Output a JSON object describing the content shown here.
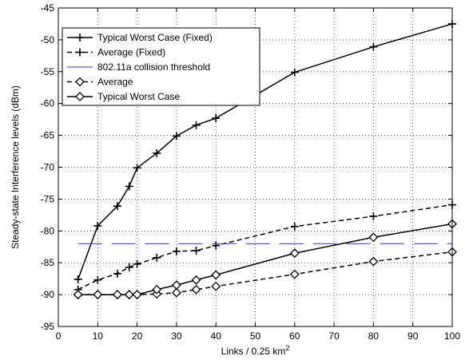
{
  "chart_data": {
    "type": "line",
    "title": "",
    "xlabel": "Links / 0.25 km",
    "xlabel_sup": "2",
    "ylabel": "Steady-state Interference levels (dBm)",
    "xlim": [
      0,
      100
    ],
    "ylim": [
      -95,
      -45
    ],
    "xticks": [
      0,
      10,
      20,
      30,
      40,
      50,
      60,
      70,
      80,
      90,
      100
    ],
    "yticks": [
      -95,
      -90,
      -85,
      -80,
      -75,
      -70,
      -65,
      -60,
      -55,
      -50,
      -45
    ],
    "grid": true,
    "legend_position": "top-left",
    "series": [
      {
        "name": "Typical Worst Case (Fixed)",
        "line": "solid",
        "marker": "plus",
        "color": "#000000",
        "x": [
          5,
          10,
          15,
          18,
          20,
          25,
          30,
          35,
          40,
          60,
          80,
          100
        ],
        "y": [
          -87.6,
          -79.2,
          -76.1,
          -73.0,
          -70.1,
          -67.8,
          -65.1,
          -63.4,
          -62.3,
          -55.1,
          -51.1,
          -47.5
        ]
      },
      {
        "name": "Average (Fixed)",
        "line": "dashed",
        "marker": "plus",
        "color": "#000000",
        "x": [
          5,
          10,
          15,
          18,
          20,
          25,
          30,
          35,
          40,
          60,
          80,
          100
        ],
        "y": [
          -89.2,
          -87.7,
          -86.7,
          -85.7,
          -85.2,
          -84.2,
          -83.2,
          -83.1,
          -82.3,
          -79.3,
          -77.7,
          -75.9
        ]
      },
      {
        "name": "802.11a collision threshold",
        "line": "longdash",
        "marker": "none",
        "color": "#3333aa",
        "x": [
          5,
          100
        ],
        "y": [
          -82,
          -82
        ]
      },
      {
        "name": "Average",
        "line": "dashed",
        "marker": "diamond",
        "color": "#000000",
        "x": [
          5,
          10,
          15,
          18,
          20,
          25,
          30,
          35,
          40,
          60,
          80,
          100
        ],
        "y": [
          -90.0,
          -90.0,
          -90.0,
          -90.0,
          -90.0,
          -89.9,
          -89.7,
          -89.2,
          -88.7,
          -86.8,
          -84.8,
          -83.3
        ]
      },
      {
        "name": "Typical Worst Case",
        "line": "solid",
        "marker": "diamond",
        "color": "#000000",
        "x": [
          5,
          10,
          15,
          18,
          20,
          25,
          30,
          35,
          40,
          60,
          80,
          100
        ],
        "y": [
          -90.0,
          -90.0,
          -90.0,
          -90.0,
          -90.0,
          -89.2,
          -88.5,
          -87.7,
          -86.9,
          -83.5,
          -81.0,
          -78.9
        ]
      }
    ]
  }
}
